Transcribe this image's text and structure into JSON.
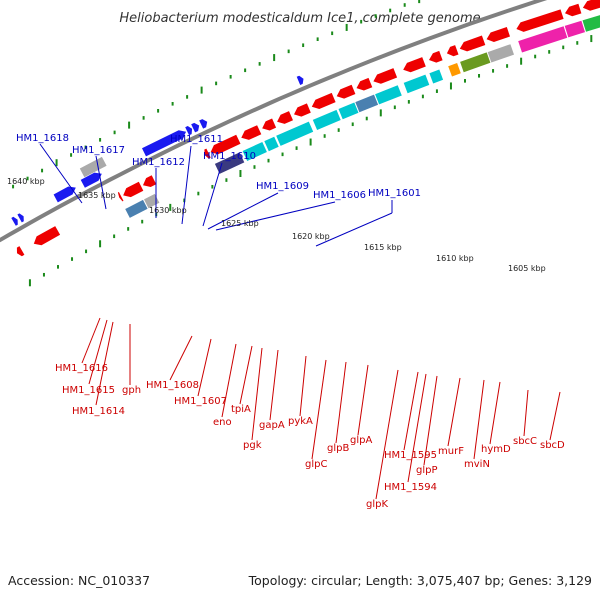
{
  "title": "Heliobacterium modesticaldum Ice1, complete genome",
  "footer": {
    "accession": "Accession: NC_010337",
    "summary": "Topology: circular; Length: 3,075,407 bp; Genes: 3,129"
  },
  "kbp_ticks": [
    "1640 kbp",
    "1635 kbp",
    "1630 kbp",
    "1625 kbp",
    "1620 kbp",
    "1615 kbp",
    "1610 kbp",
    "1605 kbp"
  ],
  "upper_labels": [
    "HM1_1618",
    "HM1_1617",
    "HM1_1611",
    "HM1_1612",
    "HM1_1610",
    "HM1_1609",
    "HM1_1606",
    "HM1_1601"
  ],
  "lower_labels": [
    "HM1_1616",
    "HM1_1615",
    "HM1_1614",
    "gph",
    "HM1_1608",
    "HM1_1607",
    "eno",
    "tpiA",
    "pgk",
    "gapA",
    "pykA",
    "glpC",
    "glpB",
    "glpA",
    "glpK",
    "HM1_1595",
    "HM1_1594",
    "glpP",
    "murF",
    "mviN",
    "hymD",
    "sbcC",
    "sbcD"
  ],
  "colors": {
    "forward": "#1a1af0",
    "reverse": "#ee0000",
    "backbone": "#808080",
    "ticks": "#1a8a1a",
    "navy": "#3a3a80",
    "cyan": "#00c8d0",
    "steel": "#4a80b0",
    "grey": "#aaaaaa",
    "orange": "#ff9900",
    "olive": "#6a9a20",
    "magenta": "#ee22aa",
    "green": "#22bb44"
  }
}
